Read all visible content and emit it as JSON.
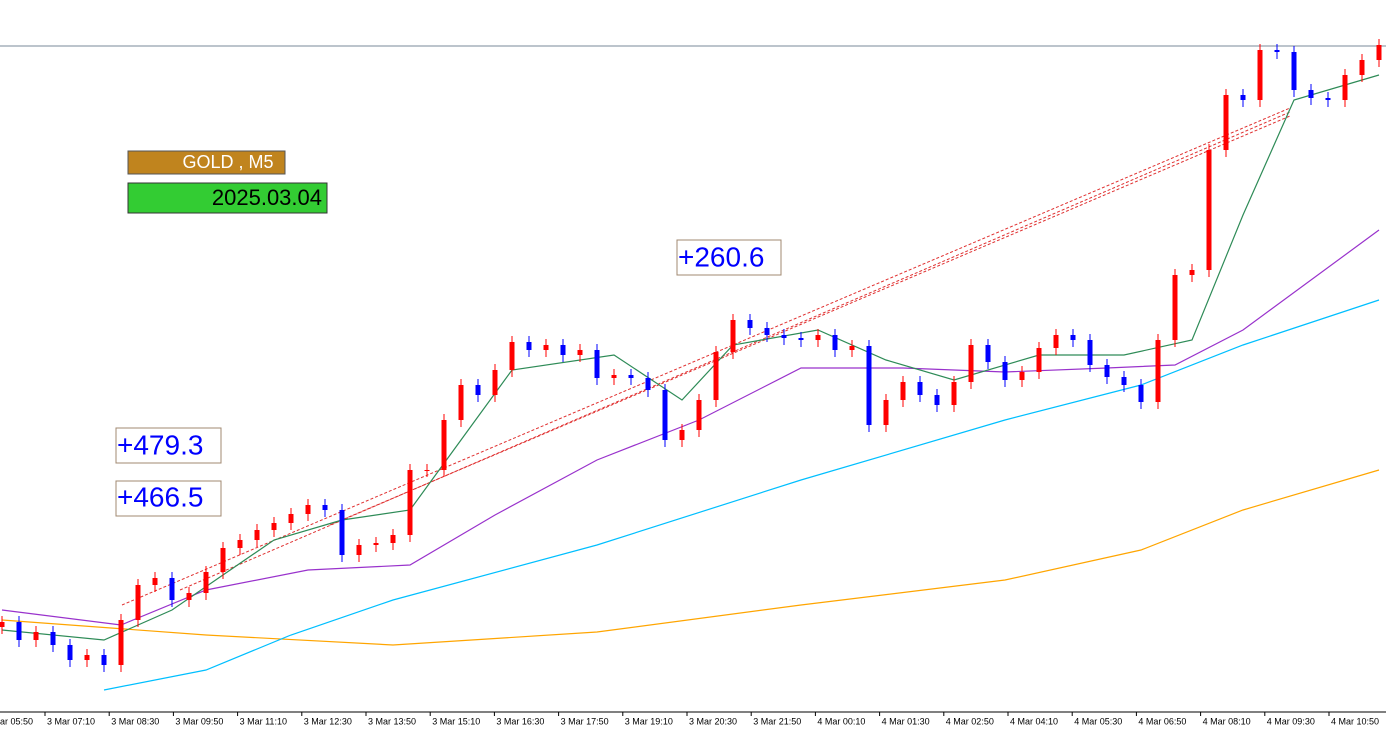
{
  "chart_data": {
    "type": "candlestick",
    "title": "GOLD , M5",
    "subtitle": "2025.03.04",
    "annotations": [
      "+260.6",
      "+479.3",
      "+466.5"
    ],
    "x_labels": [
      "ar 05:50",
      "3 Mar 07:10",
      "3 Mar 08:30",
      "3 Mar 09:50",
      "3 Mar 11:10",
      "3 Mar 12:30",
      "3 Mar 13:50",
      "3 Mar 15:10",
      "3 Mar 16:30",
      "3 Mar 17:50",
      "3 Mar 19:10",
      "3 Mar 20:30",
      "3 Mar 21:50",
      "4 Mar 00:10",
      "4 Mar 01:30",
      "4 Mar 02:50",
      "4 Mar 04:10",
      "4 Mar 05:30",
      "4 Mar 06:50",
      "4 Mar 08:10",
      "4 Mar 09:30",
      "4 Mar 10:50"
    ],
    "ylim": [
      0,
      712
    ],
    "up_color": "#ff0000",
    "down_color": "#0000ff",
    "open": [
      85,
      90,
      72,
      80,
      67,
      52,
      57,
      47,
      92,
      127,
      134,
      112,
      119,
      140,
      164,
      172,
      182,
      189,
      198,
      207,
      202,
      157,
      167,
      169,
      177,
      242,
      242,
      292,
      327,
      317,
      342,
      370,
      362,
      367,
      357,
      362,
      334,
      337,
      334,
      322,
      272,
      282,
      312,
      360,
      392,
      384,
      377,
      374,
      372,
      377,
      362,
      366,
      287,
      312,
      330,
      317,
      307,
      330,
      367,
      350,
      332,
      340,
      364,
      377,
      372,
      347,
      335,
      327,
      310,
      372,
      437,
      442,
      562,
      617,
      612,
      662,
      660,
      622,
      614,
      612,
      637,
      652
    ],
    "high": [
      96,
      96,
      86,
      86,
      73,
      63,
      63,
      98,
      133,
      140,
      140,
      125,
      146,
      170,
      178,
      188,
      195,
      204,
      213,
      213,
      208,
      173,
      175,
      183,
      248,
      248,
      298,
      333,
      333,
      348,
      376,
      376,
      373,
      373,
      368,
      368,
      343,
      343,
      340,
      328,
      288,
      318,
      366,
      398,
      398,
      390,
      383,
      380,
      383,
      383,
      372,
      372,
      318,
      336,
      336,
      323,
      336,
      373,
      373,
      356,
      346,
      370,
      383,
      383,
      378,
      353,
      341,
      333,
      378,
      443,
      448,
      568,
      623,
      623,
      668,
      668,
      666,
      628,
      620,
      643,
      658,
      673
    ],
    "low": [
      78,
      65,
      65,
      60,
      45,
      45,
      40,
      40,
      85,
      120,
      105,
      105,
      112,
      133,
      157,
      165,
      175,
      182,
      191,
      195,
      150,
      150,
      160,
      162,
      170,
      235,
      235,
      285,
      310,
      310,
      335,
      355,
      355,
      350,
      350,
      327,
      327,
      327,
      315,
      265,
      265,
      275,
      305,
      353,
      377,
      370,
      367,
      365,
      365,
      355,
      355,
      280,
      280,
      305,
      310,
      300,
      300,
      323,
      343,
      325,
      325,
      333,
      357,
      365,
      340,
      328,
      320,
      303,
      303,
      365,
      430,
      435,
      555,
      605,
      605,
      653,
      615,
      607,
      605,
      605,
      630,
      645
    ],
    "close": [
      90,
      72,
      80,
      67,
      52,
      57,
      47,
      92,
      127,
      134,
      112,
      119,
      140,
      164,
      172,
      182,
      189,
      198,
      207,
      202,
      157,
      167,
      169,
      177,
      242,
      242,
      292,
      327,
      317,
      342,
      370,
      362,
      367,
      357,
      362,
      334,
      337,
      334,
      322,
      272,
      282,
      312,
      360,
      392,
      384,
      377,
      374,
      372,
      377,
      362,
      366,
      287,
      312,
      330,
      317,
      307,
      330,
      367,
      350,
      332,
      340,
      364,
      377,
      372,
      347,
      335,
      327,
      310,
      372,
      437,
      442,
      562,
      617,
      612,
      662,
      660,
      622,
      614,
      612,
      637,
      652,
      667
    ],
    "lines": [
      {
        "color": "#ffa500",
        "x": [
          0,
          12,
          23,
          35,
          47,
          59,
          67,
          73,
          81
        ],
        "values": [
          92,
          77,
          67,
          80,
          107,
          132,
          162,
          202,
          242
        ]
      },
      {
        "color": "#00bfff",
        "x": [
          6,
          12,
          17,
          23,
          35,
          47,
          59,
          67,
          73,
          81
        ],
        "values": [
          22,
          42,
          77,
          112,
          167,
          232,
          292,
          327,
          367,
          412
        ]
      },
      {
        "color": "#9932cc",
        "x": [
          0,
          7,
          12,
          18,
          24,
          29,
          35,
          41,
          47,
          53,
          59,
          65,
          69,
          73,
          81
        ],
        "values": [
          102,
          87,
          122,
          142,
          147,
          197,
          252,
          292,
          344,
          344,
          340,
          344,
          347,
          382,
          482
        ]
      },
      {
        "color": "#2e8b57",
        "x": [
          0,
          6,
          10,
          16,
          20,
          24,
          27,
          30,
          36,
          40,
          43,
          48,
          52,
          56,
          61,
          66,
          70,
          73,
          76,
          81
        ],
        "values": [
          82,
          72,
          102,
          172,
          192,
          202,
          272,
          342,
          357,
          312,
          367,
          382,
          352,
          332,
          357,
          357,
          372,
          497,
          612,
          637
        ]
      }
    ]
  }
}
